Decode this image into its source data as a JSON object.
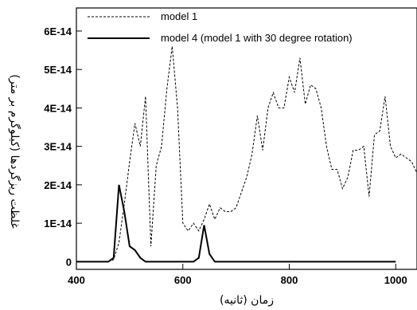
{
  "chart_data": {
    "type": "line",
    "xlabel": "زمان (ثانیه)",
    "ylabel": "غلظت ریزگردها (کیلوگرم بر متر)",
    "xlim": [
      400,
      1040
    ],
    "ylim": [
      -2e-15,
      6.6e-14
    ],
    "x_ticks": [
      400,
      600,
      800,
      1000
    ],
    "x_tick_labels": [
      "400",
      "600",
      "800",
      "1000"
    ],
    "y_ticks": [
      0,
      1e-14,
      2e-14,
      3e-14,
      4e-14,
      5e-14,
      6e-14
    ],
    "y_tick_labels": [
      "0",
      "1E-14",
      "2E-14",
      "3E-14",
      "4E-14",
      "5E-14",
      "6E-14"
    ],
    "grid": false,
    "legend_position": "top-right",
    "series": [
      {
        "name": "model 1",
        "style": "dashed",
        "color": "#000000",
        "x": [
          400,
          460,
          470,
          480,
          490,
          500,
          510,
          520,
          530,
          540,
          550,
          560,
          570,
          580,
          590,
          600,
          610,
          620,
          630,
          640,
          650,
          660,
          670,
          680,
          690,
          700,
          710,
          720,
          730,
          740,
          750,
          760,
          770,
          780,
          790,
          800,
          810,
          820,
          830,
          840,
          850,
          860,
          870,
          880,
          890,
          900,
          910,
          920,
          930,
          940,
          950,
          960,
          970,
          980,
          990,
          1000,
          1010,
          1020,
          1030,
          1040
        ],
        "y": [
          0,
          0,
          5e-16,
          5e-15,
          1.5e-14,
          2.6e-14,
          3.6e-14,
          3e-14,
          4.3e-14,
          4e-15,
          2.5e-14,
          3e-14,
          4.5e-14,
          5.6e-14,
          4e-14,
          1e-14,
          8e-15,
          1e-14,
          8e-15,
          1.1e-14,
          1.5e-14,
          1.1e-14,
          1.4e-14,
          1.3e-14,
          1.3e-14,
          1.4e-14,
          1.8e-14,
          2.2e-14,
          2.8e-14,
          3.8e-14,
          2.9e-14,
          4e-14,
          4.4e-14,
          4e-14,
          4e-14,
          4.8e-14,
          4.4e-14,
          5.3e-14,
          4.1e-14,
          4.6e-14,
          4.5e-14,
          4e-14,
          3e-14,
          2.4e-14,
          2.4e-14,
          1.9e-14,
          2.2e-14,
          2.9e-14,
          2.9e-14,
          3e-14,
          1.7e-14,
          3.3e-14,
          3.4e-14,
          4.3e-14,
          3e-14,
          2.7e-14,
          2.8e-14,
          2.7e-14,
          2.6e-14,
          2.3e-14
        ]
      },
      {
        "name": "model 4 (model 1 with 30 degree rotation)",
        "style": "solid",
        "color": "#000000",
        "x": [
          400,
          460,
          470,
          480,
          490,
          500,
          510,
          520,
          530,
          620,
          630,
          640,
          650,
          660,
          1000
        ],
        "y": [
          0,
          0,
          1e-15,
          2e-14,
          1.3e-14,
          4e-15,
          3e-15,
          1e-15,
          0,
          0,
          1e-15,
          9.5e-15,
          2e-15,
          0,
          0
        ]
      }
    ]
  }
}
